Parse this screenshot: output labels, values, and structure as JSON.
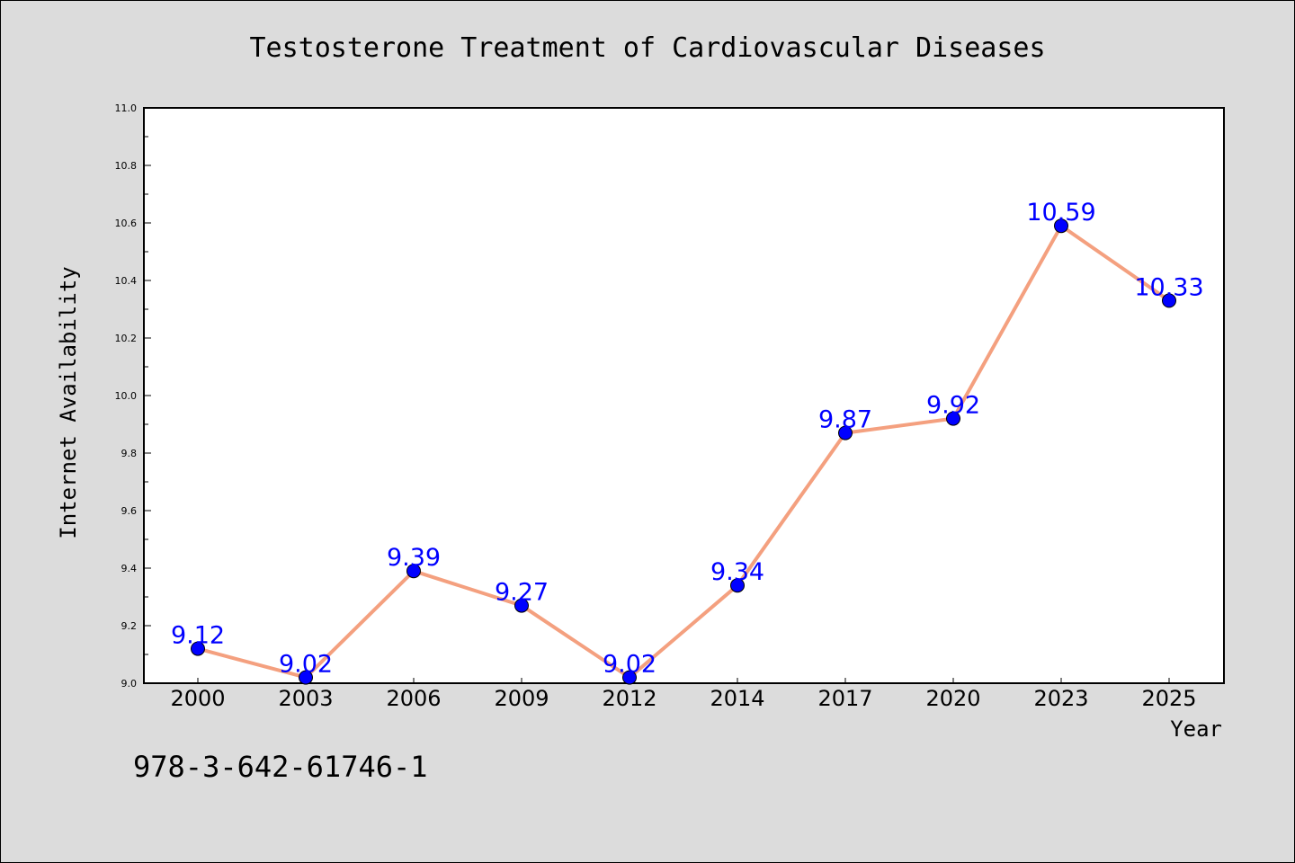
{
  "chart_data": {
    "type": "line",
    "title": "Testosterone Treatment of Cardiovascular Diseases",
    "xlabel": "Year",
    "ylabel": "Internet Availability",
    "categories": [
      "2000",
      "2003",
      "2006",
      "2009",
      "2012",
      "2014",
      "2017",
      "2020",
      "2023",
      "2025"
    ],
    "series": [
      {
        "values": [
          9.12,
          9.02,
          9.39,
          9.27,
          9.02,
          9.34,
          9.87,
          9.92,
          10.59,
          10.33
        ],
        "line_color": "#f4a07f",
        "marker_color": "#0000ff"
      }
    ],
    "data_labels": [
      "9.12",
      "9.02",
      "9.39",
      "9.27",
      "9.02",
      "9.34",
      "9.87",
      "9.92",
      "10.59",
      "10.33"
    ],
    "ylim": [
      9.0,
      11.0
    ],
    "yticks": [
      "9.0",
      "9.2",
      "9.4",
      "9.6",
      "9.8",
      "10.0",
      "10.2",
      "10.4",
      "10.6",
      "10.8",
      "11.0"
    ],
    "grid": false,
    "legend": "none"
  },
  "annotation": "978-3-642-61746-1",
  "colors": {
    "background": "#dcdcdc",
    "plot_area": "#ffffff",
    "line": "#f4a07f",
    "marker": "#0000ff",
    "data_label": "#0000ff"
  }
}
